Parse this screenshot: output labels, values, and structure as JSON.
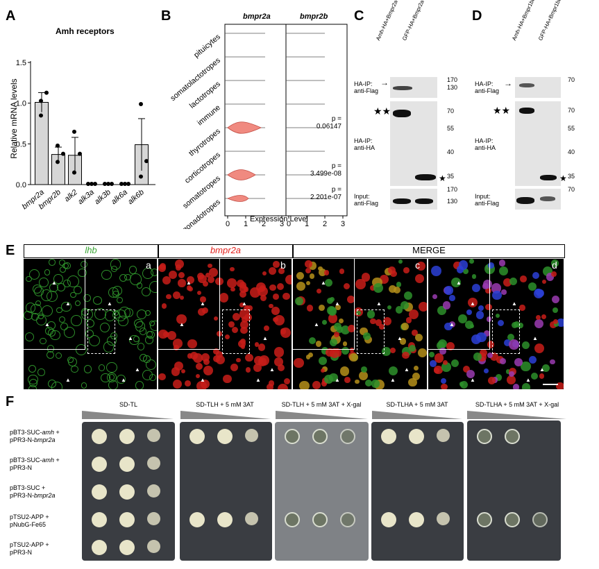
{
  "panelA": {
    "label": "A",
    "title": "Amh receptors",
    "ylabel": "Relative mRNA levels",
    "yticks": [
      "0.0",
      "0.5",
      "1.0",
      "1.5"
    ]
  },
  "chart_data": {
    "type": "bar",
    "title": "Amh receptors",
    "ylabel": "Relative mRNA levels",
    "ylim": [
      0,
      1.5
    ],
    "categories": [
      "bmpr2a",
      "bmpr2b",
      "alk2",
      "alk3a",
      "alk3b",
      "alk6a",
      "alk6b"
    ],
    "values": [
      1.01,
      0.37,
      0.36,
      0.0,
      0.0,
      0.0,
      0.49
    ],
    "errors": [
      0.12,
      0.09,
      0.22,
      0.0,
      0.0,
      0.0,
      0.32
    ]
  },
  "panelB": {
    "label": "B",
    "headers": [
      "bmpr2a",
      "bmpr2b"
    ],
    "cell_types": [
      "pituicytes",
      "somatolactotropes",
      "lactotropes",
      "immune",
      "thyrotropes",
      "corticotropes",
      "somatotropes",
      "gonadotropes"
    ],
    "pvalues": [
      "p =\n0.06147",
      "p =\n3.499e-08",
      "p =\n2.201e-07"
    ],
    "xticks": [
      "0",
      "1",
      "2",
      "3"
    ],
    "xlabel": "Expression Level"
  },
  "panelC": {
    "label": "C",
    "lanes": [
      "Amh-HA+Bmpr2a-Flag",
      "GFP-HA+Bmpr2a-Flag"
    ],
    "rows": [
      "HA-IP:\nanti-Flag",
      "HA-IP:\nanti-HA",
      "Input:\nanti-Flag"
    ],
    "mw": [
      "170",
      "130",
      "70",
      "55",
      "40",
      "35",
      "170",
      "130"
    ]
  },
  "panelD": {
    "label": "D",
    "lanes": [
      "Amh-HA+Bmpr1bb-Flag",
      "GFP-HA+Bmpr1bb-Flag"
    ],
    "rows": [
      "HA-IP:\nanti-Flag",
      "HA-IP:\nanti-HA",
      "Input:\nanti-Flag"
    ],
    "mw": [
      "70",
      "70",
      "55",
      "40",
      "35",
      "70"
    ]
  },
  "panelE": {
    "label": "E",
    "headers": [
      "lhb",
      "bmpr2a",
      "MERGE"
    ],
    "sublabels": [
      "a",
      "b",
      "c",
      "d"
    ],
    "colors": {
      "lhb": "#3aa535",
      "bmpr2a": "#e3221d"
    }
  },
  "panelF": {
    "label": "F",
    "conditions": [
      "SD-TL",
      "SD-TLH + 5 mM 3AT",
      "SD-TLH + 5 mM 3AT + X-gal",
      "SD-TLHA + 5 mM 3AT",
      "SD-TLHA + 5 mM 3AT + X-gal"
    ],
    "rows": [
      [
        "pBT3-SUC-",
        "amh",
        " +",
        "pPR3-N-",
        "bmpr2a"
      ],
      [
        "pBT3-SUC-",
        "amh",
        " +",
        "pPR3-N",
        ""
      ],
      [
        "pBT3-SUC +",
        "",
        "",
        "pPR3-N-",
        "bmpr2a"
      ],
      [
        "pTSU2-APP +",
        "",
        "",
        "pNubG-Fe65",
        ""
      ],
      [
        "pTSU2-APP +",
        "",
        "",
        "pPR3-N",
        ""
      ]
    ]
  }
}
